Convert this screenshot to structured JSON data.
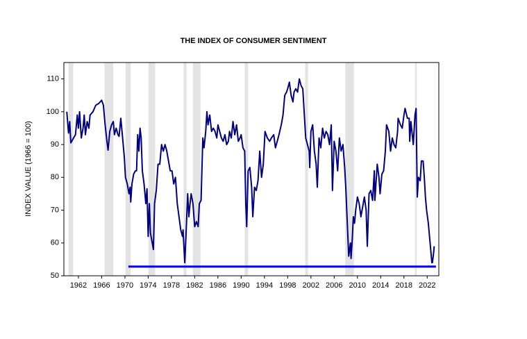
{
  "chart_data": {
    "type": "line",
    "title": "THE INDEX OF CONSUMER SENTIMENT",
    "y_label": "INDEX VALUE (1966 = 100)",
    "xlim": [
      1959.5,
      2024
    ],
    "ylim": [
      50,
      115
    ],
    "yticks": [
      50,
      60,
      70,
      80,
      90,
      100,
      110
    ],
    "xticks": [
      1962,
      1966,
      1970,
      1974,
      1978,
      1982,
      1986,
      1990,
      1994,
      1998,
      2002,
      2006,
      2010,
      2014,
      2018,
      2022
    ],
    "grid": false,
    "shaded_regions": [
      [
        1960.3,
        1961.1
      ],
      [
        1966.5,
        1968.0
      ],
      [
        1970.1,
        1971.0
      ],
      [
        1974.05,
        1975.2
      ],
      [
        1980.1,
        1980.6
      ],
      [
        1981.7,
        1983.0
      ],
      [
        1990.6,
        1991.2
      ],
      [
        2001.0,
        2001.5
      ],
      [
        2007.9,
        2009.4
      ],
      [
        2019.9,
        2020.2
      ]
    ],
    "shade_color": "#e3e3e3",
    "reference_line": {
      "value": 52.8,
      "x": [
        1970.6,
        2023.5
      ],
      "color": "#0000ff"
    },
    "series": [
      {
        "name": "Index of Consumer Sentiment",
        "color": "#000080",
        "x": [
          1960.0,
          1960.3,
          1960.5,
          1960.7,
          1961.0,
          1961.5,
          1961.8,
          1962.0,
          1962.2,
          1962.5,
          1962.8,
          1963.0,
          1963.2,
          1963.5,
          1963.8,
          1964.0,
          1964.5,
          1965.0,
          1965.5,
          1966.0,
          1966.3,
          1966.6,
          1966.9,
          1967.1,
          1967.4,
          1967.7,
          1968.0,
          1968.2,
          1968.5,
          1968.8,
          1969.0,
          1969.3,
          1969.6,
          1969.9,
          1970.1,
          1970.4,
          1970.7,
          1970.9,
          1971.0,
          1971.2,
          1971.5,
          1971.8,
          1972.0,
          1972.2,
          1972.4,
          1972.6,
          1972.8,
          1973.0,
          1973.3,
          1973.6,
          1973.8,
          1974.0,
          1974.2,
          1974.4,
          1974.7,
          1974.9,
          1975.1,
          1975.4,
          1975.7,
          1976.0,
          1976.3,
          1976.6,
          1976.9,
          1977.2,
          1977.5,
          1977.8,
          1978.1,
          1978.4,
          1978.7,
          1979.0,
          1979.3,
          1979.6,
          1979.9,
          1980.0,
          1980.3,
          1980.5,
          1980.8,
          1981.0,
          1981.2,
          1981.4,
          1981.7,
          1982.0,
          1982.3,
          1982.6,
          1982.8,
          1983.1,
          1983.4,
          1983.6,
          1983.9,
          1984.1,
          1984.3,
          1984.6,
          1984.9,
          1985.2,
          1985.5,
          1985.8,
          1986.0,
          1986.3,
          1986.6,
          1986.9,
          1987.2,
          1987.5,
          1987.8,
          1988.0,
          1988.3,
          1988.6,
          1988.9,
          1989.2,
          1989.5,
          1989.8,
          1990.0,
          1990.3,
          1990.6,
          1990.8,
          1990.95,
          1991.2,
          1991.5,
          1991.8,
          1992.0,
          1992.3,
          1992.6,
          1992.9,
          1993.2,
          1993.5,
          1993.8,
          1994.1,
          1994.5,
          1994.9,
          1995.2,
          1995.6,
          1995.9,
          1996.2,
          1996.5,
          1996.9,
          1997.2,
          1997.5,
          1997.8,
          1998.0,
          1998.3,
          1998.6,
          1998.9,
          1999.1,
          1999.4,
          1999.7,
          2000.0,
          2000.3,
          2000.6,
          2000.9,
          2001.1,
          2001.4,
          2001.7,
          2001.8,
          2002.0,
          2002.3,
          2002.6,
          2002.9,
          2003.1,
          2003.4,
          2003.7,
          2004.0,
          2004.3,
          2004.6,
          2004.9,
          2005.2,
          2005.5,
          2005.7,
          2006.0,
          2006.3,
          2006.6,
          2006.9,
          2007.2,
          2007.5,
          2007.8,
          2008.0,
          2008.3,
          2008.5,
          2008.8,
          2008.9,
          2009.1,
          2009.3,
          2009.5,
          2009.7,
          2010.0,
          2010.3,
          2010.6,
          2010.9,
          2011.2,
          2011.5,
          2011.7,
          2012.0,
          2012.3,
          2012.6,
          2012.9,
          2013.0,
          2013.4,
          2013.7,
          2013.9,
          2014.2,
          2014.5,
          2014.8,
          2015.0,
          2015.4,
          2015.7,
          2016.0,
          2016.3,
          2016.6,
          2016.9,
          2017.0,
          2017.4,
          2017.7,
          2018.0,
          2018.2,
          2018.6,
          2018.9,
          2019.0,
          2019.2,
          2019.6,
          2019.9,
          2020.1,
          2020.3,
          2020.5,
          2020.8,
          2021.0,
          2021.3,
          2021.5,
          2021.7,
          2021.9,
          2022.2,
          2022.4,
          2022.6,
          2022.8,
          2022.9,
          2023.1,
          2023.2
        ],
        "values": [
          100,
          93.5,
          97,
          90.5,
          91.5,
          93,
          99,
          95,
          100,
          92,
          95,
          99,
          93,
          97,
          95,
          99,
          100,
          102,
          102.5,
          103.5,
          102,
          96,
          91,
          88.3,
          94,
          96,
          97,
          93,
          95,
          93,
          92.5,
          98,
          92,
          86,
          80,
          78,
          75,
          77,
          72.5,
          78,
          81,
          82,
          82,
          93,
          88,
          95,
          92,
          82,
          78,
          72,
          76.5,
          62,
          72,
          63,
          60,
          58,
          72,
          76,
          84,
          84,
          90,
          88,
          90,
          88,
          85,
          82,
          82,
          78,
          80,
          72,
          68,
          64,
          62,
          64,
          54,
          62,
          75,
          68,
          72,
          75,
          72,
          65,
          66.5,
          65,
          72,
          73,
          92,
          89,
          94,
          100,
          96,
          99,
          94,
          95,
          94,
          92,
          96,
          94,
          92,
          91,
          93,
          90,
          91,
          94,
          92,
          97,
          93,
          96,
          91,
          92,
          93,
          89,
          88,
          72,
          65,
          82,
          83,
          77,
          68,
          77,
          76,
          79,
          88,
          80,
          84,
          94,
          92,
          91,
          92,
          93,
          89,
          91,
          93,
          96,
          99,
          105,
          106,
          107,
          109,
          105,
          103,
          106,
          107,
          106,
          110,
          108,
          107,
          98,
          92,
          90,
          88,
          83,
          94,
          96,
          88,
          84,
          77,
          92,
          89,
          95,
          92,
          94,
          93,
          90,
          96,
          76,
          91,
          88,
          82,
          92,
          88,
          90,
          83,
          77,
          64,
          56,
          60,
          55.3,
          61,
          68,
          66,
          70,
          74,
          72,
          68,
          71,
          74,
          70,
          59,
          75,
          76,
          73,
          82,
          73,
          84,
          80,
          75,
          81,
          82,
          88,
          96,
          94,
          88,
          92,
          90,
          89,
          94,
          98,
          96,
          95,
          99,
          101,
          98,
          98,
          91,
          97,
          90,
          99,
          101,
          74,
          80,
          79,
          85,
          85,
          80,
          74,
          70,
          66,
          62,
          58,
          54,
          54,
          57,
          59
        ]
      }
    ]
  }
}
